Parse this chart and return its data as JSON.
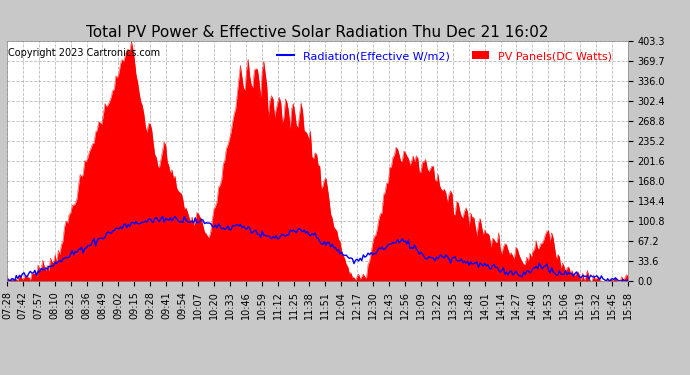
{
  "title": "Total PV Power & Effective Solar Radiation Thu Dec 21 16:02",
  "copyright": "Copyright 2023 Cartronics.com",
  "legend_radiation": "Radiation(Effective W/m2)",
  "legend_pv": "PV Panels(DC Watts)",
  "yticks": [
    0.0,
    33.6,
    67.2,
    100.8,
    134.4,
    168.0,
    201.6,
    235.2,
    268.8,
    302.4,
    336.0,
    369.7,
    403.3
  ],
  "ymax": 403.3,
  "ymin": 0.0,
  "bg_color": "#c8c8c8",
  "plot_bg_color": "#ffffff",
  "grid_color": "#aaaaaa",
  "pv_color": "#ff0000",
  "radiation_color": "#0000ff",
  "title_color": "#000000",
  "copyright_color": "#000000",
  "legend_radiation_color": "#0000ff",
  "legend_pv_color": "#ff0000",
  "xtick_labels": [
    "07:28",
    "07:42",
    "07:57",
    "08:10",
    "08:23",
    "08:36",
    "08:49",
    "09:02",
    "09:15",
    "09:28",
    "09:41",
    "09:54",
    "10:07",
    "10:20",
    "10:33",
    "10:46",
    "10:59",
    "11:12",
    "11:25",
    "11:38",
    "11:51",
    "12:04",
    "12:17",
    "12:30",
    "12:43",
    "12:56",
    "13:09",
    "13:22",
    "13:35",
    "13:48",
    "14:01",
    "14:14",
    "14:27",
    "14:40",
    "14:53",
    "15:06",
    "15:19",
    "15:32",
    "15:45",
    "15:58"
  ],
  "title_fontsize": 11,
  "copyright_fontsize": 7,
  "axis_fontsize": 7,
  "legend_fontsize": 8
}
